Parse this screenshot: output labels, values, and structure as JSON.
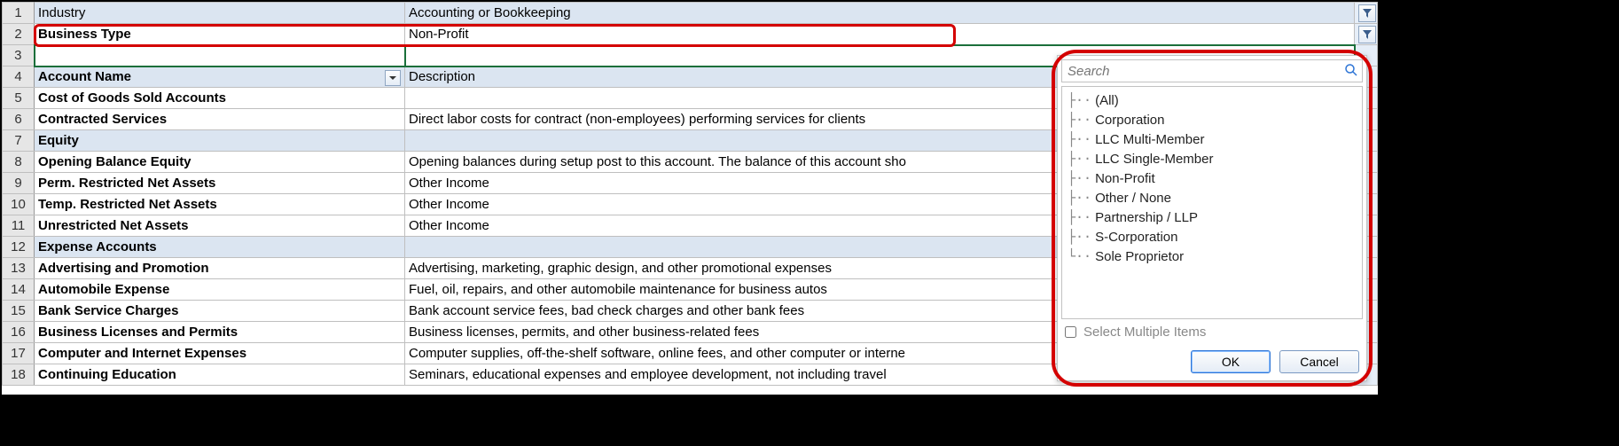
{
  "colors": {
    "highlight_row_bg": "#dbe5f1",
    "grid_border": "#bfbfbf",
    "selected_border": "#1a6f3a",
    "red": "#d40000",
    "filter_border": "#8fa6c2"
  },
  "rows": [
    {
      "n": 1,
      "a": "Industry",
      "b": "Accounting or Bookkeeping",
      "blue": true,
      "bold": false,
      "filter": true
    },
    {
      "n": 2,
      "a": "Business Type",
      "b": "Non-Profit",
      "blue": false,
      "bold": true,
      "filter": true
    },
    {
      "n": 3,
      "a": "",
      "b": "",
      "blue": false,
      "bold": false,
      "selected": true
    },
    {
      "n": 4,
      "a": "Account Name",
      "b": "Description",
      "blue": true,
      "bold": true,
      "dropdown": true
    },
    {
      "n": 5,
      "a": "Cost of Goods Sold Accounts",
      "b": "",
      "blue": false,
      "bold": true
    },
    {
      "n": 6,
      "a": "Contracted Services",
      "b": "Direct labor costs for contract (non-employees) performing services for clients",
      "blue": false,
      "bold": true
    },
    {
      "n": 7,
      "a": "Equity",
      "b": "",
      "blue": true,
      "bold": true
    },
    {
      "n": 8,
      "a": "Opening Balance Equity",
      "b": "Opening balances during setup post to this account. The balance of this account sho",
      "blue": false,
      "bold": true
    },
    {
      "n": 9,
      "a": "Perm. Restricted Net Assets",
      "b": "Other Income",
      "blue": false,
      "bold": true
    },
    {
      "n": 10,
      "a": "Temp. Restricted Net Assets",
      "b": "Other Income",
      "blue": false,
      "bold": true
    },
    {
      "n": 11,
      "a": "Unrestricted Net Assets",
      "b": "Other Income",
      "blue": false,
      "bold": true
    },
    {
      "n": 12,
      "a": "Expense Accounts",
      "b": "",
      "blue": true,
      "bold": true
    },
    {
      "n": 13,
      "a": "Advertising and Promotion",
      "b": "Advertising, marketing, graphic design, and other promotional expenses",
      "blue": false,
      "bold": true
    },
    {
      "n": 14,
      "a": "Automobile Expense",
      "b": "Fuel, oil, repairs, and other automobile maintenance for business autos",
      "blue": false,
      "bold": true
    },
    {
      "n": 15,
      "a": "Bank Service Charges",
      "b": "Bank account service fees, bad check charges and other bank fees",
      "blue": false,
      "bold": true
    },
    {
      "n": 16,
      "a": "Business Licenses and Permits",
      "b": "Business licenses, permits, and other business-related fees",
      "blue": false,
      "bold": true
    },
    {
      "n": 17,
      "a": "Computer and Internet Expenses",
      "b": "Computer supplies, off-the-shelf software, online fees, and other computer or interne",
      "blue": false,
      "bold": true
    },
    {
      "n": 18,
      "a": "Continuing Education",
      "b": "Seminars, educational expenses and employee development, not including travel",
      "blue": false,
      "bold": true
    }
  ],
  "popup": {
    "search_placeholder": "Search",
    "items": [
      "(All)",
      "Corporation",
      "LLC Multi-Member",
      "LLC Single-Member",
      "Non-Profit",
      "Other / None",
      "Partnership / LLP",
      "S-Corporation",
      "Sole Proprietor"
    ],
    "multi_label": "Select Multiple Items",
    "ok_label": "OK",
    "cancel_label": "Cancel"
  }
}
